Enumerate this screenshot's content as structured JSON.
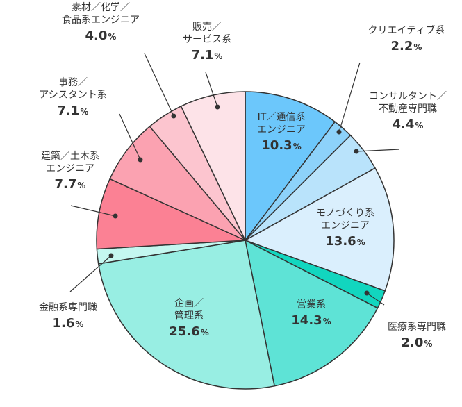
{
  "chart_data": {
    "type": "pie",
    "title": "",
    "unit": "%",
    "start": "12 o'clock",
    "direction": "clockwise",
    "slices": [
      {
        "label": [
          "IT／通信系",
          "エンジニア"
        ],
        "value": 10.3,
        "color": "#6cc7fb"
      },
      {
        "label": [
          "クリエイティブ系"
        ],
        "value": 2.2,
        "color": "#8dd2fa"
      },
      {
        "label": [
          "コンサルタント／",
          "不動産専門職"
        ],
        "value": 4.4,
        "color": "#b9e3fb"
      },
      {
        "label": [
          "モノづくり系",
          "エンジニア"
        ],
        "value": 13.6,
        "color": "#daeffd"
      },
      {
        "label": [
          "医療系専門職"
        ],
        "value": 2.0,
        "color": "#12d6bf"
      },
      {
        "label": [
          "営業系"
        ],
        "value": 14.3,
        "color": "#5ee3d6"
      },
      {
        "label": [
          "企画／",
          "管理系"
        ],
        "value": 25.6,
        "color": "#98eee3"
      },
      {
        "label": [
          "金融系専門職"
        ],
        "value": 1.6,
        "color": "#c4f7f0"
      },
      {
        "label": [
          "建築／土木系",
          "エンジニア"
        ],
        "value": 7.7,
        "color": "#fb8194"
      },
      {
        "label": [
          "事務／",
          "アシスタント系"
        ],
        "value": 7.1,
        "color": "#fba2b1"
      },
      {
        "label": [
          "素材／化学／",
          "食品系エンジニア"
        ],
        "value": 4.0,
        "color": "#fcc5cf"
      },
      {
        "label": [
          "販売／",
          "サービス系"
        ],
        "value": 7.1,
        "color": "#fde3e8"
      }
    ]
  }
}
